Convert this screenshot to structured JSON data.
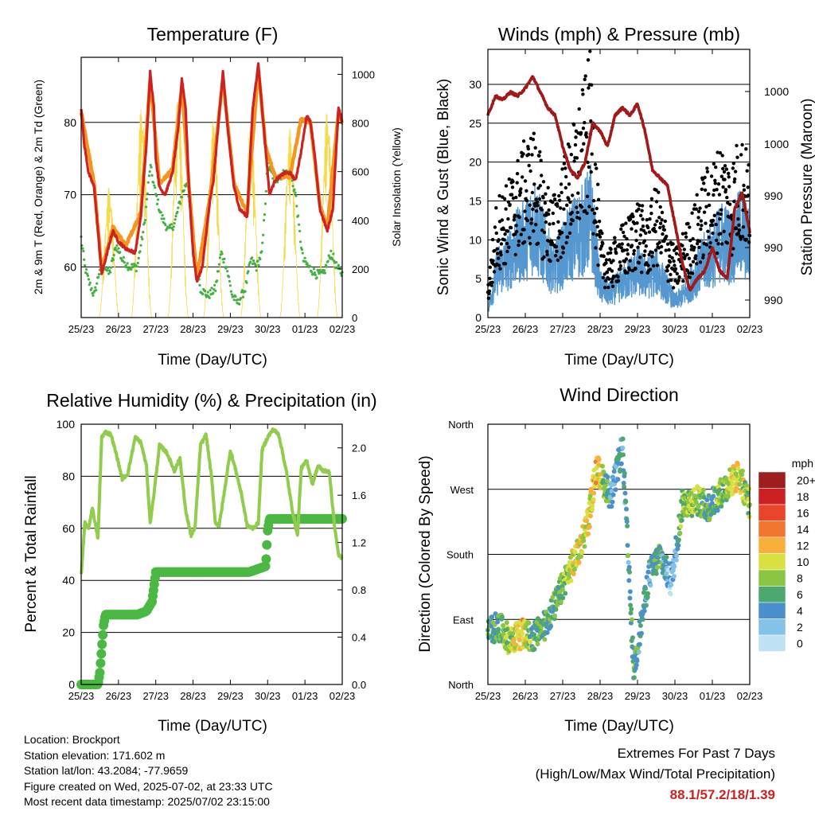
{
  "colors": {
    "red": "#cc2222",
    "orange": "#f5941e",
    "green": "#44b043",
    "yellow": "#f3db4c",
    "blue": "#5598d0",
    "black": "#000000",
    "maroon": "#a01a1a",
    "rh": "#92cc4e",
    "precip": "#4ab842"
  },
  "time_labels": [
    "25/23",
    "26/23",
    "27/23",
    "28/23",
    "29/23",
    "30/23",
    "01/23",
    "02/23"
  ],
  "charts": {
    "temperature": {
      "title": "Temperature (F)",
      "xlabel": "Time (Day/UTC)",
      "ylabel_left": "2m & 9m T (Red, Orange) & 2m Td (Green)",
      "ylabel_right": "Solar Insolation (Yellow)",
      "left_ticks": [
        "60",
        "70",
        "80"
      ],
      "right_ticks": [
        "0",
        "200",
        "400",
        "600",
        "800",
        "1000"
      ]
    },
    "winds": {
      "title": "Winds (mph) & Pressure (mb)",
      "xlabel": "Time (Day/UTC)",
      "ylabel_left": "Sonic Wind & Gust (Blue, Black)",
      "ylabel_right": "Station Pressure (Maroon)",
      "left_ticks": [
        "0",
        "5",
        "10",
        "15",
        "20",
        "25",
        "30"
      ],
      "right_ticks": [
        "990",
        "990",
        "990",
        "1000",
        "1000"
      ]
    },
    "humidity": {
      "title": "Relative Humidity (%) & Precipitation (in)",
      "xlabel": "Time (Day/UTC)",
      "ylabel_left": "Percent & Total Rainfall",
      "left_ticks": [
        "0",
        "20",
        "40",
        "60",
        "80",
        "100"
      ],
      "right_ticks": [
        "0.0",
        "0.4",
        "0.8",
        "1.2",
        "1.6",
        "2.0"
      ]
    },
    "direction": {
      "title": "Wind Direction",
      "xlabel": "Time (Day/UTC)",
      "ylabel_left": "Direction (Colored By Speed)",
      "left_ticks": [
        "North",
        "East",
        "South",
        "West",
        "North"
      ],
      "legend_title": "mph",
      "legend_labels": [
        "0",
        "2",
        "4",
        "6",
        "8",
        "10",
        "12",
        "14",
        "16",
        "18",
        "20+"
      ],
      "legend_colors": [
        "#bfe3f5",
        "#84c2e8",
        "#4b90cd",
        "#4da870",
        "#8cc541",
        "#d9e042",
        "#f8b03b",
        "#f27630",
        "#e8452a",
        "#cc2024",
        "#9e1d1d"
      ]
    }
  },
  "chart_data": [
    {
      "type": "line",
      "name_ref": "temperature",
      "x_unit": "day",
      "x_range": [
        0,
        7
      ],
      "ylim": [
        53,
        89
      ],
      "y2lim": [
        0,
        1070
      ],
      "series": [
        {
          "name": "2m T",
          "axis": "left",
          "x": [
            0,
            0.08,
            0.2,
            0.35,
            0.45,
            0.55,
            0.7,
            0.85,
            1.0,
            1.2,
            1.45,
            1.6,
            1.75,
            1.85,
            1.95,
            2.0,
            2.1,
            2.25,
            2.45,
            2.6,
            2.7,
            2.8,
            2.9,
            3.0,
            3.1,
            3.25,
            3.45,
            3.55,
            3.7,
            3.8,
            3.95,
            4.1,
            4.25,
            4.45,
            4.6,
            4.75,
            4.85,
            4.95,
            5.05,
            5.2,
            5.45,
            5.6,
            5.75,
            5.9,
            6.05,
            6.15,
            6.25,
            6.4,
            6.6,
            6.75,
            6.9,
            7.0
          ],
          "y": [
            82,
            77,
            73,
            71,
            65,
            59,
            62,
            65,
            63.5,
            62.5,
            62,
            67,
            77,
            87,
            82,
            75,
            71,
            70,
            73,
            79,
            86,
            82,
            70,
            62,
            58,
            60,
            69,
            72,
            81,
            87,
            78,
            71,
            68,
            67,
            82,
            88,
            82,
            76,
            70,
            72,
            73,
            73,
            72,
            76,
            81,
            80,
            76,
            68,
            65,
            68,
            82,
            80
          ]
        },
        {
          "name": "9m T",
          "axis": "left",
          "x": [
            0,
            0.35,
            0.55,
            0.85,
            1.2,
            1.6,
            1.85,
            2.1,
            2.45,
            2.7,
            2.9,
            3.1,
            3.45,
            3.8,
            4.1,
            4.45,
            4.75,
            4.95,
            5.2,
            5.6,
            5.9,
            6.15,
            6.4,
            6.6,
            6.9,
            7.0
          ],
          "y": [
            81.5,
            71.5,
            59.5,
            65.5,
            63,
            67.5,
            86,
            71.5,
            73.5,
            85,
            70.5,
            58.5,
            69.5,
            86,
            71.5,
            67.5,
            87.5,
            76.5,
            72.5,
            72.5,
            80.5,
            80,
            68.5,
            65.5,
            81.5,
            80
          ]
        },
        {
          "name": "2m Td",
          "axis": "left",
          "x": [
            0,
            0.1,
            0.2,
            0.35,
            0.55,
            0.75,
            0.95,
            1.1,
            1.3,
            1.5,
            1.7,
            1.85,
            2.0,
            2.15,
            2.35,
            2.5,
            2.7,
            2.85,
            3.0,
            3.2,
            3.4,
            3.6,
            3.75,
            3.9,
            4.05,
            4.2,
            4.4,
            4.55,
            4.7,
            4.85,
            5.0,
            5.2,
            5.45,
            5.6,
            5.75,
            5.85,
            5.95,
            6.1,
            6.3,
            6.5,
            6.7,
            6.85,
            7.0
          ],
          "y": [
            64,
            60,
            58,
            56,
            61,
            59,
            63,
            61,
            60,
            60,
            66,
            74,
            70,
            67,
            65,
            66,
            70,
            72,
            63,
            57,
            56,
            57,
            62,
            60,
            56,
            55,
            57,
            61,
            60,
            62,
            74,
            72,
            73,
            73,
            70,
            65,
            61,
            60,
            59,
            59,
            62,
            60,
            59
          ]
        },
        {
          "name": "Solar Insolation",
          "axis": "right",
          "peaks": [
            [
              0.75,
              540
            ],
            [
              1.62,
              880
            ],
            [
              2.6,
              920
            ],
            [
              3.55,
              820
            ],
            [
              4.55,
              800
            ],
            [
              5.6,
              780
            ],
            [
              6.6,
              860
            ]
          ]
        }
      ]
    },
    {
      "type": "line",
      "name_ref": "winds",
      "x_unit": "day",
      "x_range": [
        0,
        7
      ],
      "ylim": [
        0,
        34.5
      ],
      "series": [
        {
          "name": "Sonic Wind",
          "axis": "left",
          "x": [
            0,
            0.25,
            0.5,
            0.75,
            1.0,
            1.25,
            1.5,
            1.75,
            2.0,
            2.25,
            2.5,
            2.75,
            3.0,
            3.25,
            3.5,
            3.75,
            4.0,
            4.25,
            4.5,
            4.75,
            5.0,
            5.25,
            5.5,
            5.75,
            6.0,
            6.25,
            6.5,
            6.75,
            7.0
          ],
          "y": [
            1,
            6,
            7,
            9,
            10,
            12,
            9,
            6,
            8,
            10,
            11,
            13,
            4,
            3,
            4,
            5,
            6,
            5,
            6,
            4,
            2,
            3,
            5,
            7,
            8,
            10,
            9,
            11,
            9
          ]
        },
        {
          "name": "Gust",
          "axis": "left",
          "x": [
            0,
            0.25,
            0.5,
            0.75,
            1.0,
            1.25,
            1.5,
            1.75,
            2.0,
            2.25,
            2.5,
            2.75,
            3.0,
            3.25,
            3.5,
            3.75,
            4.0,
            4.25,
            4.5,
            4.75,
            5.0,
            5.25,
            5.5,
            5.75,
            6.0,
            6.25,
            6.5,
            6.75,
            7.0
          ],
          "y": [
            3,
            11,
            12,
            14,
            16,
            17,
            13,
            11,
            14,
            17,
            20,
            24,
            8,
            6,
            8,
            9,
            11,
            9,
            12,
            9,
            6,
            8,
            10,
            13,
            14,
            16,
            14,
            17,
            14
          ]
        },
        {
          "name": "Station Pressure",
          "axis": "right",
          "x": [
            0,
            0.2,
            0.4,
            0.6,
            0.8,
            1.0,
            1.2,
            1.4,
            1.6,
            1.8,
            2.0,
            2.2,
            2.4,
            2.6,
            2.8,
            3.0,
            3.2,
            3.4,
            3.6,
            3.8,
            4.0,
            4.2,
            4.4,
            4.6,
            4.8,
            5.0,
            5.2,
            5.4,
            5.6,
            5.8,
            6.0,
            6.2,
            6.4,
            6.6,
            6.8,
            7.0
          ],
          "y_scaled": [
            26,
            28.5,
            28,
            29,
            28.5,
            29.5,
            31,
            29,
            27,
            26,
            22,
            19,
            18,
            20,
            25,
            24,
            22,
            26,
            27,
            26,
            27.5,
            24,
            19,
            18,
            17,
            12,
            7,
            3.5,
            5,
            6,
            9,
            6,
            5,
            14,
            16,
            11
          ]
        }
      ]
    },
    {
      "type": "line",
      "name_ref": "humidity",
      "x_unit": "day",
      "x_range": [
        0,
        7
      ],
      "ylim": [
        0,
        100
      ],
      "y2lim": [
        0,
        2.2
      ],
      "series": [
        {
          "name": "Relative Humidity",
          "axis": "left",
          "x": [
            0,
            0.1,
            0.2,
            0.3,
            0.45,
            0.55,
            0.65,
            0.8,
            0.95,
            1.1,
            1.25,
            1.45,
            1.6,
            1.75,
            1.85,
            1.95,
            2.1,
            2.3,
            2.5,
            2.65,
            2.8,
            2.95,
            3.05,
            3.2,
            3.35,
            3.5,
            3.6,
            3.7,
            3.85,
            4.0,
            4.15,
            4.3,
            4.45,
            4.6,
            4.75,
            4.85,
            5.0,
            5.15,
            5.3,
            5.5,
            5.65,
            5.8,
            5.9,
            6.05,
            6.2,
            6.35,
            6.5,
            6.65,
            6.8,
            6.9,
            7.0
          ],
          "y": [
            42,
            62,
            60,
            68,
            56,
            95,
            97,
            96,
            88,
            79,
            81,
            95,
            93,
            84,
            62,
            73,
            92,
            89,
            82,
            87,
            67,
            57,
            60,
            92,
            96,
            79,
            62,
            61,
            75,
            90,
            82,
            73,
            61,
            60,
            62,
            90,
            95,
            98,
            96,
            82,
            68,
            57,
            83,
            86,
            77,
            84,
            82,
            82,
            60,
            50,
            48
          ]
        },
        {
          "name": "Total Precipitation",
          "axis": "right",
          "x": [
            0,
            0.45,
            0.5,
            0.55,
            0.6,
            0.65,
            1.0,
            1.5,
            1.75,
            1.9,
            1.95,
            2.0,
            2.5,
            3.5,
            4.5,
            4.95,
            5.0,
            5.05,
            5.5,
            6.5,
            7.0
          ],
          "y": [
            0,
            0,
            0.1,
            0.3,
            0.5,
            0.59,
            0.59,
            0.59,
            0.62,
            0.7,
            0.82,
            0.95,
            0.95,
            0.95,
            0.95,
            1.0,
            1.3,
            1.4,
            1.4,
            1.4,
            1.4
          ]
        }
      ]
    },
    {
      "type": "scatter",
      "name_ref": "direction",
      "x_unit": "day",
      "x_range": [
        0,
        7
      ],
      "y_categories": [
        "North",
        "East",
        "South",
        "West",
        "North"
      ],
      "ylim_deg": [
        0,
        360
      ],
      "points_summary": [
        {
          "x": 0.0,
          "deg": 75,
          "mph": 6
        },
        {
          "x": 0.3,
          "deg": 80,
          "mph": 6
        },
        {
          "x": 0.6,
          "deg": 60,
          "mph": 8
        },
        {
          "x": 0.9,
          "deg": 70,
          "mph": 12
        },
        {
          "x": 1.2,
          "deg": 65,
          "mph": 6
        },
        {
          "x": 1.5,
          "deg": 80,
          "mph": 6
        },
        {
          "x": 1.8,
          "deg": 110,
          "mph": 6
        },
        {
          "x": 2.1,
          "deg": 150,
          "mph": 8
        },
        {
          "x": 2.4,
          "deg": 180,
          "mph": 10
        },
        {
          "x": 2.7,
          "deg": 230,
          "mph": 10
        },
        {
          "x": 2.9,
          "deg": 300,
          "mph": 12
        },
        {
          "x": 3.3,
          "deg": 260,
          "mph": 4
        },
        {
          "x": 3.6,
          "deg": 330,
          "mph": 4
        },
        {
          "x": 3.9,
          "deg": 20,
          "mph": 6
        },
        {
          "x": 4.3,
          "deg": 150,
          "mph": 4
        },
        {
          "x": 4.6,
          "deg": 180,
          "mph": 6
        },
        {
          "x": 4.9,
          "deg": 140,
          "mph": 2
        },
        {
          "x": 5.2,
          "deg": 250,
          "mph": 8
        },
        {
          "x": 5.6,
          "deg": 255,
          "mph": 8
        },
        {
          "x": 5.9,
          "deg": 245,
          "mph": 6
        },
        {
          "x": 6.3,
          "deg": 270,
          "mph": 8
        },
        {
          "x": 6.7,
          "deg": 290,
          "mph": 10
        },
        {
          "x": 7.0,
          "deg": 250,
          "mph": 8
        }
      ]
    }
  ],
  "info": {
    "location": "Location: Brockport",
    "elevation": "Station elevation: 171.602 m",
    "latlon": "Station lat/lon: 43.2084; -77.9659",
    "created": "Figure created on Wed, 2025-07-02, at 23:33 UTC",
    "recent": "Most recent data timestamp: 2025/07/02 23:15:00"
  },
  "extremes": {
    "title": "Extremes For Past 7 Days",
    "subtitle": "(High/Low/Max Wind/Total Precipitation)",
    "values": "88.1/57.2/18/1.39"
  }
}
